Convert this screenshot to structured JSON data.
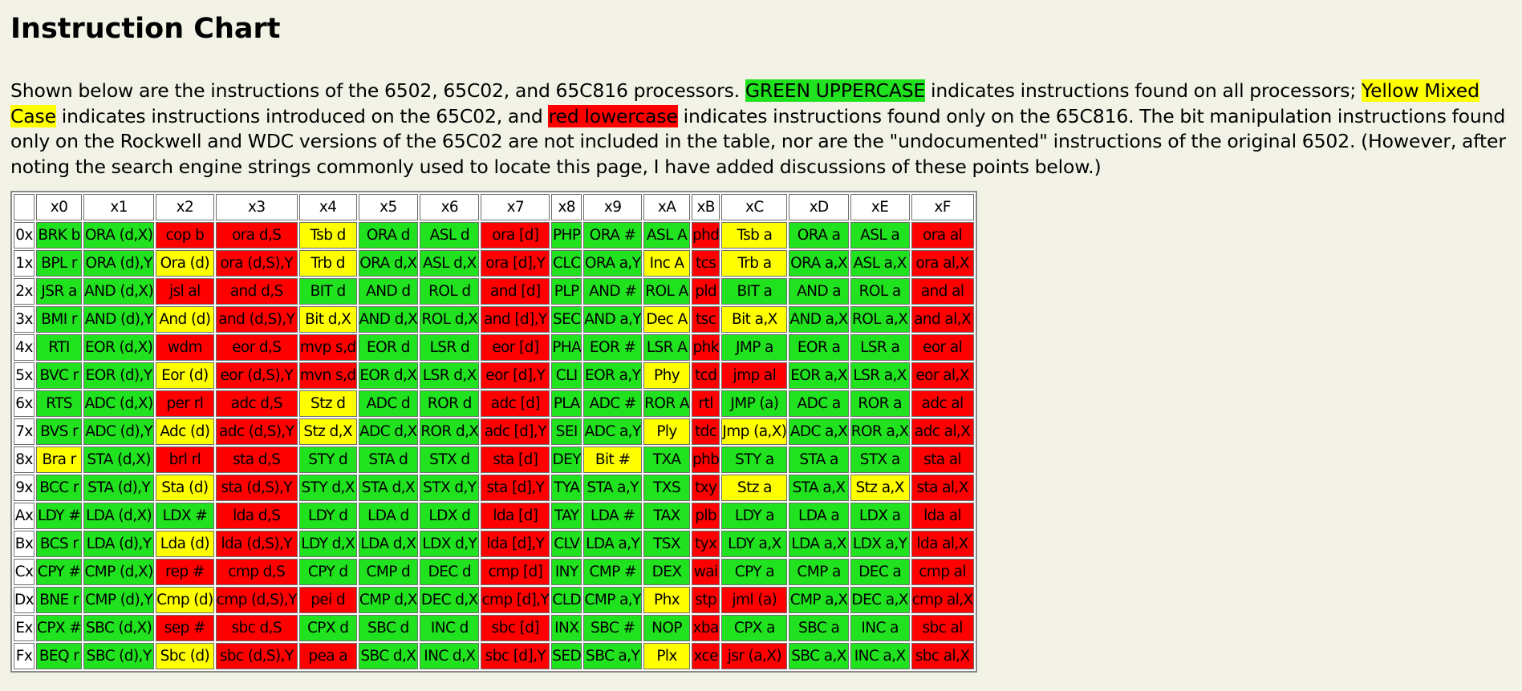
{
  "title": "Instruction Chart",
  "intro": {
    "p1": "Shown below are the instructions of the 6502, 65C02, and 65C816 processors.",
    "green_label": "GREEN UPPERCASE",
    "p2": "indicates instructions found on all processors;",
    "yellow_label": "Yellow Mixed Case",
    "p3": "indicates instructions introduced on the 65C02, and",
    "red_label": "red lowercase",
    "p4": "indicates instructions found only on the 65C816. The bit manipulation instructions found only on the Rockwell and WDC versions of the 65C02 are not included in the table, nor are the \"undocumented\" instructions of the original 6502. (However, after noting the search engine strings commonly used to locate this page, I have added discussions of these points below.)"
  },
  "colors": {
    "green": "#21e21e",
    "yellow": "#ffff00",
    "red": "#ff0000"
  },
  "table": {
    "corner": "",
    "col_headers": [
      "x0",
      "x1",
      "x2",
      "x3",
      "x4",
      "x5",
      "x6",
      "x7",
      "x8",
      "x9",
      "xA",
      "xB",
      "xC",
      "xD",
      "xE",
      "xF"
    ],
    "rows": [
      {
        "label": "0x",
        "cells": [
          [
            "BRK b",
            "g"
          ],
          [
            "ORA (d,X)",
            "g"
          ],
          [
            "cop b",
            "r"
          ],
          [
            "ora d,S",
            "r"
          ],
          [
            "Tsb d",
            "y"
          ],
          [
            "ORA d",
            "g"
          ],
          [
            "ASL d",
            "g"
          ],
          [
            "ora [d]",
            "r"
          ],
          [
            "PHP",
            "g"
          ],
          [
            "ORA #",
            "g"
          ],
          [
            "ASL A",
            "g"
          ],
          [
            "phd",
            "r"
          ],
          [
            "Tsb a",
            "y"
          ],
          [
            "ORA a",
            "g"
          ],
          [
            "ASL a",
            "g"
          ],
          [
            "ora al",
            "r"
          ]
        ]
      },
      {
        "label": "1x",
        "cells": [
          [
            "BPL r",
            "g"
          ],
          [
            "ORA (d),Y",
            "g"
          ],
          [
            "Ora (d)",
            "y"
          ],
          [
            "ora (d,S),Y",
            "r"
          ],
          [
            "Trb d",
            "y"
          ],
          [
            "ORA d,X",
            "g"
          ],
          [
            "ASL d,X",
            "g"
          ],
          [
            "ora [d],Y",
            "r"
          ],
          [
            "CLC",
            "g"
          ],
          [
            "ORA a,Y",
            "g"
          ],
          [
            "Inc A",
            "y"
          ],
          [
            "tcs",
            "r"
          ],
          [
            "Trb a",
            "y"
          ],
          [
            "ORA a,X",
            "g"
          ],
          [
            "ASL a,X",
            "g"
          ],
          [
            "ora al,X",
            "r"
          ]
        ]
      },
      {
        "label": "2x",
        "cells": [
          [
            "JSR a",
            "g"
          ],
          [
            "AND (d,X)",
            "g"
          ],
          [
            "jsl al",
            "r"
          ],
          [
            "and d,S",
            "r"
          ],
          [
            "BIT d",
            "g"
          ],
          [
            "AND d",
            "g"
          ],
          [
            "ROL d",
            "g"
          ],
          [
            "and [d]",
            "r"
          ],
          [
            "PLP",
            "g"
          ],
          [
            "AND #",
            "g"
          ],
          [
            "ROL A",
            "g"
          ],
          [
            "pld",
            "r"
          ],
          [
            "BIT a",
            "g"
          ],
          [
            "AND a",
            "g"
          ],
          [
            "ROL a",
            "g"
          ],
          [
            "and al",
            "r"
          ]
        ]
      },
      {
        "label": "3x",
        "cells": [
          [
            "BMI r",
            "g"
          ],
          [
            "AND (d),Y",
            "g"
          ],
          [
            "And (d)",
            "y"
          ],
          [
            "and (d,S),Y",
            "r"
          ],
          [
            "Bit d,X",
            "y"
          ],
          [
            "AND d,X",
            "g"
          ],
          [
            "ROL d,X",
            "g"
          ],
          [
            "and [d],Y",
            "r"
          ],
          [
            "SEC",
            "g"
          ],
          [
            "AND a,Y",
            "g"
          ],
          [
            "Dec A",
            "y"
          ],
          [
            "tsc",
            "r"
          ],
          [
            "Bit a,X",
            "y"
          ],
          [
            "AND a,X",
            "g"
          ],
          [
            "ROL a,X",
            "g"
          ],
          [
            "and al,X",
            "r"
          ]
        ]
      },
      {
        "label": "4x",
        "cells": [
          [
            "RTI",
            "g"
          ],
          [
            "EOR (d,X)",
            "g"
          ],
          [
            "wdm",
            "r"
          ],
          [
            "eor d,S",
            "r"
          ],
          [
            "mvp s,d",
            "r"
          ],
          [
            "EOR d",
            "g"
          ],
          [
            "LSR d",
            "g"
          ],
          [
            "eor [d]",
            "r"
          ],
          [
            "PHA",
            "g"
          ],
          [
            "EOR #",
            "g"
          ],
          [
            "LSR A",
            "g"
          ],
          [
            "phk",
            "r"
          ],
          [
            "JMP a",
            "g"
          ],
          [
            "EOR a",
            "g"
          ],
          [
            "LSR a",
            "g"
          ],
          [
            "eor al",
            "r"
          ]
        ]
      },
      {
        "label": "5x",
        "cells": [
          [
            "BVC r",
            "g"
          ],
          [
            "EOR (d),Y",
            "g"
          ],
          [
            "Eor (d)",
            "y"
          ],
          [
            "eor (d,S),Y",
            "r"
          ],
          [
            "mvn s,d",
            "r"
          ],
          [
            "EOR d,X",
            "g"
          ],
          [
            "LSR d,X",
            "g"
          ],
          [
            "eor [d],Y",
            "r"
          ],
          [
            "CLI",
            "g"
          ],
          [
            "EOR a,Y",
            "g"
          ],
          [
            "Phy",
            "y"
          ],
          [
            "tcd",
            "r"
          ],
          [
            "jmp al",
            "r"
          ],
          [
            "EOR a,X",
            "g"
          ],
          [
            "LSR a,X",
            "g"
          ],
          [
            "eor al,X",
            "r"
          ]
        ]
      },
      {
        "label": "6x",
        "cells": [
          [
            "RTS",
            "g"
          ],
          [
            "ADC (d,X)",
            "g"
          ],
          [
            "per rl",
            "r"
          ],
          [
            "adc d,S",
            "r"
          ],
          [
            "Stz d",
            "y"
          ],
          [
            "ADC d",
            "g"
          ],
          [
            "ROR d",
            "g"
          ],
          [
            "adc [d]",
            "r"
          ],
          [
            "PLA",
            "g"
          ],
          [
            "ADC #",
            "g"
          ],
          [
            "ROR A",
            "g"
          ],
          [
            "rtl",
            "r"
          ],
          [
            "JMP (a)",
            "g"
          ],
          [
            "ADC a",
            "g"
          ],
          [
            "ROR a",
            "g"
          ],
          [
            "adc al",
            "r"
          ]
        ]
      },
      {
        "label": "7x",
        "cells": [
          [
            "BVS r",
            "g"
          ],
          [
            "ADC (d),Y",
            "g"
          ],
          [
            "Adc (d)",
            "y"
          ],
          [
            "adc (d,S),Y",
            "r"
          ],
          [
            "Stz d,X",
            "y"
          ],
          [
            "ADC d,X",
            "g"
          ],
          [
            "ROR d,X",
            "g"
          ],
          [
            "adc [d],Y",
            "r"
          ],
          [
            "SEI",
            "g"
          ],
          [
            "ADC a,Y",
            "g"
          ],
          [
            "Ply",
            "y"
          ],
          [
            "tdc",
            "r"
          ],
          [
            "Jmp (a,X)",
            "y"
          ],
          [
            "ADC a,X",
            "g"
          ],
          [
            "ROR a,X",
            "g"
          ],
          [
            "adc al,X",
            "r"
          ]
        ]
      },
      {
        "label": "8x",
        "cells": [
          [
            "Bra r",
            "y"
          ],
          [
            "STA (d,X)",
            "g"
          ],
          [
            "brl rl",
            "r"
          ],
          [
            "sta d,S",
            "r"
          ],
          [
            "STY d",
            "g"
          ],
          [
            "STA d",
            "g"
          ],
          [
            "STX d",
            "g"
          ],
          [
            "sta [d]",
            "r"
          ],
          [
            "DEY",
            "g"
          ],
          [
            "Bit #",
            "y"
          ],
          [
            "TXA",
            "g"
          ],
          [
            "phb",
            "r"
          ],
          [
            "STY a",
            "g"
          ],
          [
            "STA a",
            "g"
          ],
          [
            "STX a",
            "g"
          ],
          [
            "sta al",
            "r"
          ]
        ]
      },
      {
        "label": "9x",
        "cells": [
          [
            "BCC r",
            "g"
          ],
          [
            "STA (d),Y",
            "g"
          ],
          [
            "Sta (d)",
            "y"
          ],
          [
            "sta (d,S),Y",
            "r"
          ],
          [
            "STY d,X",
            "g"
          ],
          [
            "STA d,X",
            "g"
          ],
          [
            "STX d,Y",
            "g"
          ],
          [
            "sta [d],Y",
            "r"
          ],
          [
            "TYA",
            "g"
          ],
          [
            "STA a,Y",
            "g"
          ],
          [
            "TXS",
            "g"
          ],
          [
            "txy",
            "r"
          ],
          [
            "Stz a",
            "y"
          ],
          [
            "STA a,X",
            "g"
          ],
          [
            "Stz a,X",
            "y"
          ],
          [
            "sta al,X",
            "r"
          ]
        ]
      },
      {
        "label": "Ax",
        "cells": [
          [
            "LDY #",
            "g"
          ],
          [
            "LDA (d,X)",
            "g"
          ],
          [
            "LDX #",
            "g"
          ],
          [
            "lda d,S",
            "r"
          ],
          [
            "LDY d",
            "g"
          ],
          [
            "LDA d",
            "g"
          ],
          [
            "LDX d",
            "g"
          ],
          [
            "lda [d]",
            "r"
          ],
          [
            "TAY",
            "g"
          ],
          [
            "LDA #",
            "g"
          ],
          [
            "TAX",
            "g"
          ],
          [
            "plb",
            "r"
          ],
          [
            "LDY a",
            "g"
          ],
          [
            "LDA a",
            "g"
          ],
          [
            "LDX a",
            "g"
          ],
          [
            "lda al",
            "r"
          ]
        ]
      },
      {
        "label": "Bx",
        "cells": [
          [
            "BCS r",
            "g"
          ],
          [
            "LDA (d),Y",
            "g"
          ],
          [
            "Lda (d)",
            "y"
          ],
          [
            "lda (d,S),Y",
            "r"
          ],
          [
            "LDY d,X",
            "g"
          ],
          [
            "LDA d,X",
            "g"
          ],
          [
            "LDX d,Y",
            "g"
          ],
          [
            "lda [d],Y",
            "r"
          ],
          [
            "CLV",
            "g"
          ],
          [
            "LDA a,Y",
            "g"
          ],
          [
            "TSX",
            "g"
          ],
          [
            "tyx",
            "r"
          ],
          [
            "LDY a,X",
            "g"
          ],
          [
            "LDA a,X",
            "g"
          ],
          [
            "LDX a,Y",
            "g"
          ],
          [
            "lda al,X",
            "r"
          ]
        ]
      },
      {
        "label": "Cx",
        "cells": [
          [
            "CPY #",
            "g"
          ],
          [
            "CMP (d,X)",
            "g"
          ],
          [
            "rep #",
            "r"
          ],
          [
            "cmp d,S",
            "r"
          ],
          [
            "CPY d",
            "g"
          ],
          [
            "CMP d",
            "g"
          ],
          [
            "DEC d",
            "g"
          ],
          [
            "cmp [d]",
            "r"
          ],
          [
            "INY",
            "g"
          ],
          [
            "CMP #",
            "g"
          ],
          [
            "DEX",
            "g"
          ],
          [
            "wai",
            "r"
          ],
          [
            "CPY a",
            "g"
          ],
          [
            "CMP a",
            "g"
          ],
          [
            "DEC a",
            "g"
          ],
          [
            "cmp al",
            "r"
          ]
        ]
      },
      {
        "label": "Dx",
        "cells": [
          [
            "BNE r",
            "g"
          ],
          [
            "CMP (d),Y",
            "g"
          ],
          [
            "Cmp (d)",
            "y"
          ],
          [
            "cmp (d,S),Y",
            "r"
          ],
          [
            "pei d",
            "r"
          ],
          [
            "CMP d,X",
            "g"
          ],
          [
            "DEC d,X",
            "g"
          ],
          [
            "cmp [d],Y",
            "r"
          ],
          [
            "CLD",
            "g"
          ],
          [
            "CMP a,Y",
            "g"
          ],
          [
            "Phx",
            "y"
          ],
          [
            "stp",
            "r"
          ],
          [
            "jml (a)",
            "r"
          ],
          [
            "CMP a,X",
            "g"
          ],
          [
            "DEC a,X",
            "g"
          ],
          [
            "cmp al,X",
            "r"
          ]
        ]
      },
      {
        "label": "Ex",
        "cells": [
          [
            "CPX #",
            "g"
          ],
          [
            "SBC (d,X)",
            "g"
          ],
          [
            "sep #",
            "r"
          ],
          [
            "sbc d,S",
            "r"
          ],
          [
            "CPX d",
            "g"
          ],
          [
            "SBC d",
            "g"
          ],
          [
            "INC d",
            "g"
          ],
          [
            "sbc [d]",
            "r"
          ],
          [
            "INX",
            "g"
          ],
          [
            "SBC #",
            "g"
          ],
          [
            "NOP",
            "g"
          ],
          [
            "xba",
            "r"
          ],
          [
            "CPX a",
            "g"
          ],
          [
            "SBC a",
            "g"
          ],
          [
            "INC a",
            "g"
          ],
          [
            "sbc al",
            "r"
          ]
        ]
      },
      {
        "label": "Fx",
        "cells": [
          [
            "BEQ r",
            "g"
          ],
          [
            "SBC (d),Y",
            "g"
          ],
          [
            "Sbc (d)",
            "y"
          ],
          [
            "sbc (d,S),Y",
            "r"
          ],
          [
            "pea a",
            "r"
          ],
          [
            "SBC d,X",
            "g"
          ],
          [
            "INC d,X",
            "g"
          ],
          [
            "sbc [d],Y",
            "r"
          ],
          [
            "SED",
            "g"
          ],
          [
            "SBC a,Y",
            "g"
          ],
          [
            "Plx",
            "y"
          ],
          [
            "xce",
            "r"
          ],
          [
            "jsr (a,X)",
            "r"
          ],
          [
            "SBC a,X",
            "g"
          ],
          [
            "INC a,X",
            "g"
          ],
          [
            "sbc al,X",
            "r"
          ]
        ]
      }
    ]
  }
}
